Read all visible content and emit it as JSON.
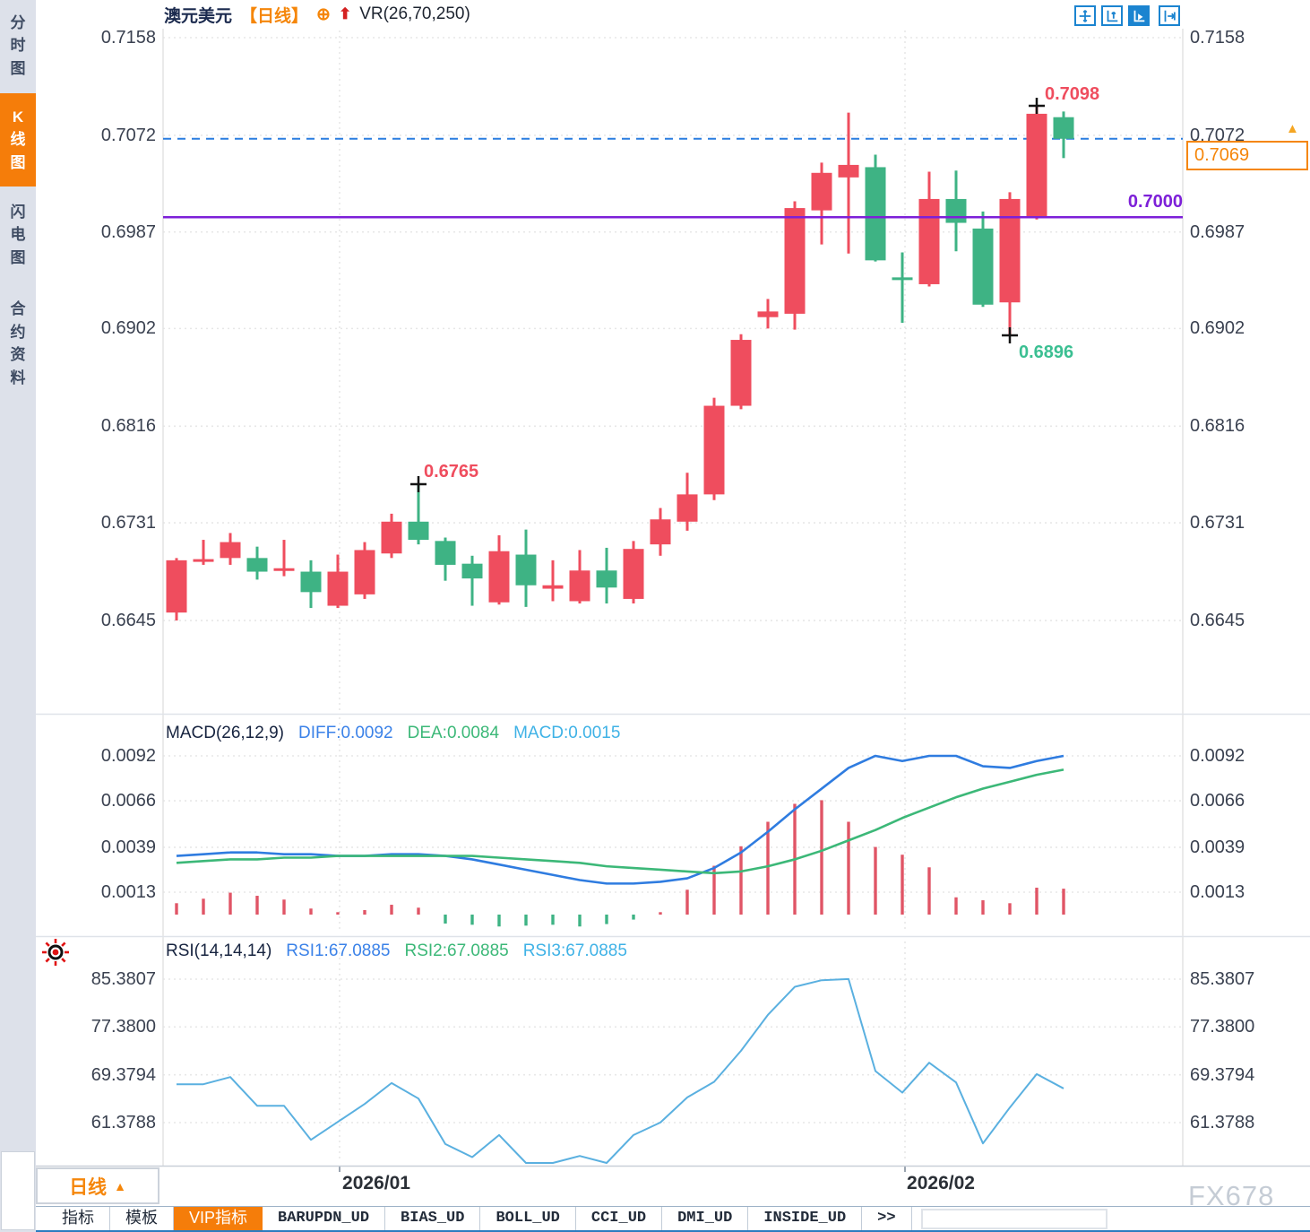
{
  "header": {
    "symbol": "澳元美元",
    "period": "【日线】",
    "indicator": "VR(26,70,250)"
  },
  "icons": {
    "circle_plus": "⊕",
    "red_up_arrow": "⬆",
    "caret_up": "▲",
    "axis_price_arrow": "▲"
  },
  "toolbar": {
    "icons": [
      {
        "name": "move-crosshair-icon",
        "active": false
      },
      {
        "name": "axis-zoom-icon",
        "active": false
      },
      {
        "name": "axis-scale-icon",
        "active": true
      },
      {
        "name": "pan-right-icon",
        "active": false
      }
    ]
  },
  "sidebar": {
    "items": [
      {
        "label": "分时图",
        "active": false
      },
      {
        "label": "K线图",
        "active": true
      },
      {
        "label": "闪电图",
        "active": false
      },
      {
        "label": "合约资料",
        "active": false
      }
    ]
  },
  "price_axis": {
    "ticks": [
      "0.7158",
      "0.7072",
      "0.6987",
      "0.6902",
      "0.6816",
      "0.6731",
      "0.6645"
    ]
  },
  "annotations": {
    "bar_high": "0.7098",
    "bar_low": "0.6896",
    "swing_high": "0.6765",
    "support": "0.7000",
    "current_price": "0.7069"
  },
  "macd_panel": {
    "title": "MACD(26,12,9)",
    "diff": "DIFF:0.0092",
    "dea": "DEA:0.0084",
    "macd": "MACD:0.0015",
    "ticks": [
      "0.0092",
      "0.0066",
      "0.0039",
      "0.0013"
    ]
  },
  "rsi_panel": {
    "title": "RSI(14,14,14)",
    "rsi1": "RSI1:67.0885",
    "rsi2": "RSI2:67.0885",
    "rsi3": "RSI3:67.0885",
    "ticks": [
      "85.3807",
      "77.3800",
      "69.3794",
      "61.3788"
    ]
  },
  "x_axis": {
    "period_button": "日线",
    "dates": [
      "2026/01",
      "2026/02"
    ]
  },
  "bottom_tabs": [
    {
      "label": "指标",
      "active": false
    },
    {
      "label": "模板",
      "active": false
    },
    {
      "label": "VIP指标",
      "active": true
    },
    {
      "label": "BARUPDN_UD",
      "active": false
    },
    {
      "label": "BIAS_UD",
      "active": false
    },
    {
      "label": "BOLL_UD",
      "active": false
    },
    {
      "label": "CCI_UD",
      "active": false
    },
    {
      "label": "DMI_UD",
      "active": false
    },
    {
      "label": "INSIDE_UD",
      "active": false
    },
    {
      "label": ">>",
      "active": false
    }
  ],
  "watermark": "FX678",
  "colors": {
    "accent_orange": "#f57d0a",
    "candle_up": "#ef4d5e",
    "candle_down": "#3eb384",
    "diff_blue": "#2f7ce0",
    "dea_green": "#3cb878",
    "rsi_line": "#5ab0e0",
    "support_purple": "#7d20d8",
    "current_line_blue": "#2a7de0",
    "toolbar_blue": "#1b84d0",
    "grid": "#e7e7e7",
    "axis_text": "#3a4150"
  },
  "chart_data": [
    {
      "type": "candlestick",
      "title": "澳元美元 日线",
      "ylim": [
        0.6645,
        0.7158
      ],
      "y_ticks": [
        0.7158,
        0.7072,
        0.6987,
        0.6902,
        0.6816,
        0.6731,
        0.6645
      ],
      "x_labels": [
        "2026/01",
        "2026/02"
      ],
      "up_color": "#ef4d5e",
      "down_color": "#3eb384",
      "levels": {
        "current_price": 0.7069,
        "support_line": 0.7
      },
      "marked_points": {
        "bar_high": {
          "index": 32,
          "value": 0.7098
        },
        "bar_low": {
          "index": 31,
          "value": 0.6896
        },
        "swing_high": {
          "index": 9,
          "value": 0.6765
        }
      },
      "candles_ohlc": [
        [
          0.6652,
          0.67,
          0.6645,
          0.6698
        ],
        [
          0.6697,
          0.6716,
          0.6694,
          0.6699
        ],
        [
          0.67,
          0.6722,
          0.6694,
          0.6714
        ],
        [
          0.67,
          0.671,
          0.6681,
          0.6688
        ],
        [
          0.669,
          0.6716,
          0.6684,
          0.6691
        ],
        [
          0.6688,
          0.6698,
          0.6656,
          0.667
        ],
        [
          0.6658,
          0.6703,
          0.6656,
          0.6688
        ],
        [
          0.6668,
          0.6714,
          0.6664,
          0.6707
        ],
        [
          0.6704,
          0.6739,
          0.67,
          0.6732
        ],
        [
          0.6732,
          0.6765,
          0.6712,
          0.6716
        ],
        [
          0.6715,
          0.6718,
          0.668,
          0.6694
        ],
        [
          0.6695,
          0.6702,
          0.6658,
          0.6682
        ],
        [
          0.6661,
          0.672,
          0.6659,
          0.6706
        ],
        [
          0.6703,
          0.6725,
          0.6657,
          0.6676
        ],
        [
          0.6673,
          0.6698,
          0.6662,
          0.6676
        ],
        [
          0.6662,
          0.6707,
          0.666,
          0.6689
        ],
        [
          0.6689,
          0.6709,
          0.666,
          0.6674
        ],
        [
          0.6664,
          0.6715,
          0.666,
          0.6708
        ],
        [
          0.6712,
          0.6744,
          0.6702,
          0.6734
        ],
        [
          0.6732,
          0.6775,
          0.6724,
          0.6756
        ],
        [
          0.6756,
          0.6841,
          0.6751,
          0.6834
        ],
        [
          0.6834,
          0.6897,
          0.6831,
          0.6892
        ],
        [
          0.6912,
          0.6928,
          0.6902,
          0.6917
        ],
        [
          0.6915,
          0.7014,
          0.6901,
          0.7008
        ],
        [
          0.7006,
          0.7048,
          0.6976,
          0.7039
        ],
        [
          0.7035,
          0.7092,
          0.6968,
          0.7046
        ],
        [
          0.7044,
          0.7055,
          0.6961,
          0.6962
        ],
        [
          0.6947,
          0.6969,
          0.6907,
          0.6946
        ],
        [
          0.6941,
          0.704,
          0.6939,
          0.7016
        ],
        [
          0.7016,
          0.7041,
          0.697,
          0.6995
        ],
        [
          0.699,
          0.7005,
          0.6921,
          0.6923
        ],
        [
          0.6925,
          0.7022,
          0.6896,
          0.7016
        ],
        [
          0.7,
          0.7098,
          0.6998,
          0.7091
        ],
        [
          0.7088,
          0.7093,
          0.7052,
          0.7069
        ]
      ]
    },
    {
      "type": "bar",
      "title": "MACD(26,12,9)",
      "y_ticks": [
        0.0092,
        0.0066,
        0.0039,
        0.0013
      ],
      "last_values": {
        "DIFF": 0.0092,
        "DEA": 0.0084,
        "MACD": 0.0015
      },
      "histogram": [
        0.00066,
        0.00092,
        0.00127,
        0.00109,
        0.00087,
        0.00035,
        0.00014,
        0.00026,
        0.00057,
        0.0004,
        -0.00052,
        -0.00059,
        -0.00069,
        -0.00064,
        -0.00059,
        -0.00069,
        -0.00055,
        -0.00029,
        0.00014,
        0.00144,
        0.00283,
        0.00396,
        0.00538,
        0.00642,
        0.00663,
        0.00538,
        0.00392,
        0.00347,
        0.00274,
        0.001,
        0.00083,
        0.00066,
        0.00156,
        0.0015
      ],
      "series": [
        {
          "name": "DIFF",
          "color": "#2f7ce0",
          "values": [
            0.0034,
            0.0035,
            0.0036,
            0.0036,
            0.0035,
            0.0035,
            0.0034,
            0.0034,
            0.0035,
            0.0035,
            0.0034,
            0.0032,
            0.0029,
            0.0026,
            0.0023,
            0.002,
            0.0018,
            0.0018,
            0.0019,
            0.0021,
            0.0027,
            0.0036,
            0.0048,
            0.0061,
            0.0073,
            0.0085,
            0.0092,
            0.0089,
            0.0092,
            0.0092,
            0.0086,
            0.0085,
            0.0089,
            0.0092
          ]
        },
        {
          "name": "DEA",
          "color": "#3cb878",
          "values": [
            0.003,
            0.0031,
            0.0032,
            0.0032,
            0.0033,
            0.0033,
            0.0034,
            0.0034,
            0.0034,
            0.0034,
            0.0034,
            0.0034,
            0.0033,
            0.0032,
            0.0031,
            0.003,
            0.0028,
            0.0027,
            0.0026,
            0.0025,
            0.0024,
            0.0025,
            0.0028,
            0.0032,
            0.0037,
            0.0043,
            0.0049,
            0.0056,
            0.0062,
            0.0068,
            0.0073,
            0.0077,
            0.0081,
            0.0084
          ]
        }
      ]
    },
    {
      "type": "line",
      "title": "RSI(14,14,14)",
      "y_ticks": [
        85.3807,
        77.38,
        69.3794,
        61.3788
      ],
      "last_values": {
        "RSI1": 67.0885,
        "RSI2": 67.0885,
        "RSI3": 67.0885
      },
      "series": [
        {
          "name": "RSI",
          "color": "#5ab0e0",
          "values": [
            67.8,
            67.8,
            69.0,
            64.2,
            64.2,
            58.5,
            61.5,
            64.5,
            68.0,
            65.4,
            57.8,
            55.6,
            59.3,
            53.2,
            53.2,
            55.8,
            53.2,
            59.3,
            61.4,
            65.6,
            68.2,
            73.4,
            79.4,
            84.1,
            85.2,
            85.4,
            70.0,
            66.4,
            71.4,
            68.1,
            57.9,
            63.9,
            69.5,
            67.0885
          ]
        }
      ]
    }
  ]
}
